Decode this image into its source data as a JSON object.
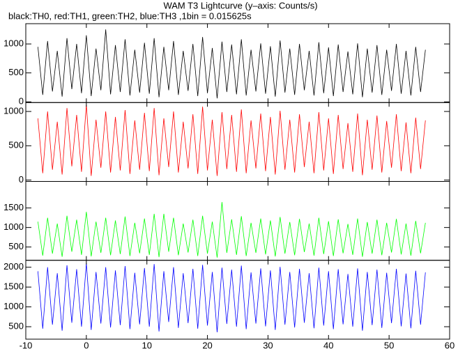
{
  "chart_data": [
    {
      "type": "line",
      "title": "WAM T3 Lightcurve (y–axis: Counts/s)",
      "subtitle": "black:TH0, red:TH1, green:TH2, blue:TH3 ,1bin = 0.015625s",
      "x": [
        -8,
        -7.2,
        -6.4,
        -5.6,
        -4.8,
        -4,
        -3.2,
        -2.4,
        -1.6,
        -0.8,
        0,
        0.8,
        1.6,
        2.4,
        3.2,
        4,
        4.8,
        5.6,
        6.4,
        7.2,
        8,
        8.8,
        9.6,
        10.4,
        11.2,
        12,
        12.8,
        13.6,
        14.4,
        15.2,
        16,
        16.8,
        17.6,
        18.4,
        19.2,
        20,
        20.8,
        21.6,
        22.4,
        23.2,
        24,
        24.8,
        25.6,
        26.4,
        27.2,
        28,
        28.8,
        29.6,
        30.4,
        31.2,
        32,
        32.8,
        33.6,
        34.4,
        35.2,
        36,
        36.8,
        37.6,
        38.4,
        39.2,
        40,
        40.8,
        41.6,
        42.4,
        43.2,
        44,
        44.8,
        45.6,
        46.4,
        47.2,
        48,
        48.8,
        49.6,
        50.4,
        51.2,
        52,
        52.8,
        53.6,
        54.4,
        55.2,
        56
      ],
      "series": [
        {
          "name": "TH0",
          "color": "#000000",
          "values": [
            950,
            120,
            1050,
            180,
            880,
            90,
            1100,
            220,
            1000,
            150,
            1150,
            100,
            920,
            200,
            1250,
            130,
            980,
            170,
            1080,
            110,
            900,
            160,
            1020,
            140,
            1100,
            80,
            950,
            200,
            1050,
            120,
            880,
            190,
            1000,
            100,
            1120,
            150,
            930,
            60,
            1040,
            170,
            990,
            130,
            1080,
            110,
            900,
            180,
            1010,
            140,
            960,
            90,
            1060,
            160,
            920,
            120,
            1000,
            200,
            880,
            110,
            1030,
            150,
            940,
            100,
            990,
            170,
            870,
            130,
            1010,
            80,
            920,
            160,
            980,
            120,
            900,
            190,
            1000,
            140,
            880,
            110,
            950,
            170,
            900
          ]
        }
      ],
      "xlim": [
        -10,
        60
      ],
      "ylim": [
        -12,
        1350
      ],
      "yticks": [
        0,
        500,
        1000
      ]
    },
    {
      "type": "line",
      "x": [
        -8,
        -7.2,
        -6.4,
        -5.6,
        -4.8,
        -4,
        -3.2,
        -2.4,
        -1.6,
        -0.8,
        0,
        0.8,
        1.6,
        2.4,
        3.2,
        4,
        4.8,
        5.6,
        6.4,
        7.2,
        8,
        8.8,
        9.6,
        10.4,
        11.2,
        12,
        12.8,
        13.6,
        14.4,
        15.2,
        16,
        16.8,
        17.6,
        18.4,
        19.2,
        20,
        20.8,
        21.6,
        22.4,
        23.2,
        24,
        24.8,
        25.6,
        26.4,
        27.2,
        28,
        28.8,
        29.6,
        30.4,
        31.2,
        32,
        32.8,
        33.6,
        34.4,
        35.2,
        36,
        36.8,
        37.6,
        38.4,
        39.2,
        40,
        40.8,
        41.6,
        42.4,
        43.2,
        44,
        44.8,
        45.6,
        46.4,
        47.2,
        48,
        48.8,
        49.6,
        50.4,
        51.2,
        52,
        52.8,
        53.6,
        54.4,
        55.2,
        56
      ],
      "series": [
        {
          "name": "TH1",
          "color": "#ff0000",
          "values": [
            900,
            100,
            1000,
            150,
            850,
            80,
            1050,
            200,
            950,
            120,
            1100,
            60,
            880,
            180,
            1000,
            110,
            920,
            140,
            1020,
            90,
            870,
            150,
            980,
            130,
            1050,
            70,
            900,
            190,
            1000,
            110,
            850,
            170,
            960,
            90,
            1070,
            140,
            880,
            60,
            990,
            160,
            950,
            120,
            1030,
            100,
            870,
            170,
            970,
            130,
            920,
            80,
            1010,
            150,
            880,
            110,
            960,
            190,
            850,
            100,
            990,
            140,
            900,
            90,
            950,
            160,
            830,
            120,
            970,
            70,
            880,
            150,
            940,
            110,
            860,
            180,
            960,
            130,
            840,
            100,
            910,
            160,
            870
          ]
        }
      ],
      "xlim": [
        -10,
        60
      ],
      "ylim": [
        -20,
        1130
      ],
      "yticks": [
        0,
        500,
        1000
      ]
    },
    {
      "type": "line",
      "x": [
        -8,
        -7.2,
        -6.4,
        -5.6,
        -4.8,
        -4,
        -3.2,
        -2.4,
        -1.6,
        -0.8,
        0,
        0.8,
        1.6,
        2.4,
        3.2,
        4,
        4.8,
        5.6,
        6.4,
        7.2,
        8,
        8.8,
        9.6,
        10.4,
        11.2,
        12,
        12.8,
        13.6,
        14.4,
        15.2,
        16,
        16.8,
        17.6,
        18.4,
        19.2,
        20,
        20.8,
        21.6,
        22.4,
        23.2,
        24,
        24.8,
        25.6,
        26.4,
        27.2,
        28,
        28.8,
        29.6,
        30.4,
        31.2,
        32,
        32.8,
        33.6,
        34.4,
        35.2,
        36,
        36.8,
        37.6,
        38.4,
        39.2,
        40,
        40.8,
        41.6,
        42.4,
        43.2,
        44,
        44.8,
        45.6,
        46.4,
        47.2,
        48,
        48.8,
        49.6,
        50.4,
        51.2,
        52,
        52.8,
        53.6,
        54.4,
        55.2,
        56
      ],
      "series": [
        {
          "name": "TH2",
          "color": "#00ff00",
          "values": [
            1150,
            280,
            1250,
            330,
            1100,
            250,
            1300,
            380,
            1200,
            300,
            1400,
            260,
            1150,
            350,
            1250,
            290,
            1180,
            320,
            1280,
            270,
            1120,
            340,
            1230,
            300,
            1350,
            240,
            1350,
            380,
            1250,
            290,
            1100,
            360,
            1200,
            270,
            1300,
            330,
            1150,
            230,
            1650,
            350,
            1210,
            300,
            1290,
            270,
            1120,
            350,
            1230,
            310,
            1180,
            260,
            1270,
            330,
            1140,
            290,
            1220,
            370,
            1100,
            280,
            1250,
            320,
            1160,
            270,
            1210,
            340,
            1090,
            300,
            1230,
            250,
            1140,
            330,
            1200,
            290,
            1120,
            360,
            1220,
            310,
            1100,
            280,
            1170,
            340,
            1120
          ]
        }
      ],
      "xlim": [
        -10,
        60
      ],
      "ylim": [
        160,
        2180
      ],
      "yticks": [
        500,
        1000,
        1500
      ]
    },
    {
      "type": "line",
      "x": [
        -8,
        -7.2,
        -6.4,
        -5.6,
        -4.8,
        -4,
        -3.2,
        -2.4,
        -1.6,
        -0.8,
        0,
        0.8,
        1.6,
        2.4,
        3.2,
        4,
        4.8,
        5.6,
        6.4,
        7.2,
        8,
        8.8,
        9.6,
        10.4,
        11.2,
        12,
        12.8,
        13.6,
        14.4,
        15.2,
        16,
        16.8,
        17.6,
        18.4,
        19.2,
        20,
        20.8,
        21.6,
        22.4,
        23.2,
        24,
        24.8,
        25.6,
        26.4,
        27.2,
        28,
        28.8,
        29.6,
        30.4,
        31.2,
        32,
        32.8,
        33.6,
        34.4,
        35.2,
        36,
        36.8,
        37.6,
        38.4,
        39.2,
        40,
        40.8,
        41.6,
        42.4,
        43.2,
        44,
        44.8,
        45.6,
        46.4,
        47.2,
        48,
        48.8,
        49.6,
        50.4,
        51.2,
        52,
        52.8,
        53.6,
        54.4,
        55.2,
        56
      ],
      "series": [
        {
          "name": "TH3",
          "color": "#0000ff",
          "values": [
            1900,
            450,
            2000,
            550,
            1850,
            400,
            2050,
            600,
            1950,
            500,
            2100,
            420,
            1880,
            580,
            2000,
            480,
            1920,
            540,
            2030,
            440,
            1860,
            560,
            1980,
            500,
            2080,
            380,
            1900,
            620,
            2000,
            470,
            1850,
            590,
            1960,
            450,
            2060,
            530,
            1880,
            360,
            1990,
            570,
            1940,
            500,
            2040,
            440,
            1870,
            580,
            1970,
            510,
            1920,
            420,
            2010,
            550,
            1880,
            480,
            1960,
            600,
            1850,
            460,
            1990,
            530,
            1900,
            440,
            1950,
            560,
            1830,
            500,
            1970,
            400,
            1880,
            540,
            1940,
            470,
            1860,
            590,
            1960,
            510,
            1840,
            460,
            1910,
            550,
            1870
          ]
        }
      ],
      "xlim": [
        -10,
        60
      ],
      "ylim": [
        186,
        2175
      ],
      "yticks": [
        500,
        1000,
        1500,
        2000
      ],
      "xticks": [
        -10,
        0,
        10,
        20,
        30,
        40,
        50,
        60
      ]
    }
  ]
}
